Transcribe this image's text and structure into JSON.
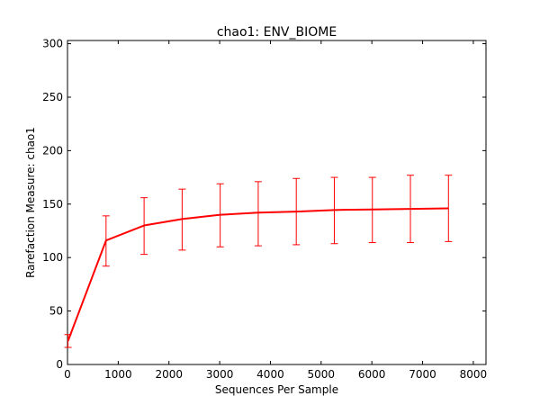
{
  "chart_data": {
    "type": "line",
    "title": "chao1: ENV_BIOME",
    "xlabel": "Sequences Per Sample",
    "ylabel": "Rarefaction Measure: chao1",
    "xlim": [
      0,
      8250
    ],
    "ylim": [
      0,
      303
    ],
    "xticks": [
      0,
      1000,
      2000,
      3000,
      4000,
      5000,
      6000,
      7000,
      8000
    ],
    "yticks": [
      0,
      50,
      100,
      150,
      200,
      250,
      300
    ],
    "grid": false,
    "legend": "none",
    "series": [
      {
        "color": "#ff0000",
        "x": [
          10,
          760,
          1510,
          2260,
          3010,
          3760,
          4510,
          5260,
          6010,
          6760,
          7510
        ],
        "y": [
          22,
          116,
          130,
          136,
          140,
          142,
          143,
          144.5,
          145,
          145.5,
          146
        ],
        "err_low": [
          16,
          92,
          103,
          107,
          110,
          111,
          112,
          113,
          114,
          114,
          115
        ],
        "err_high": [
          28,
          139,
          156,
          164,
          169,
          171,
          174,
          175,
          175,
          177,
          177
        ]
      }
    ]
  }
}
